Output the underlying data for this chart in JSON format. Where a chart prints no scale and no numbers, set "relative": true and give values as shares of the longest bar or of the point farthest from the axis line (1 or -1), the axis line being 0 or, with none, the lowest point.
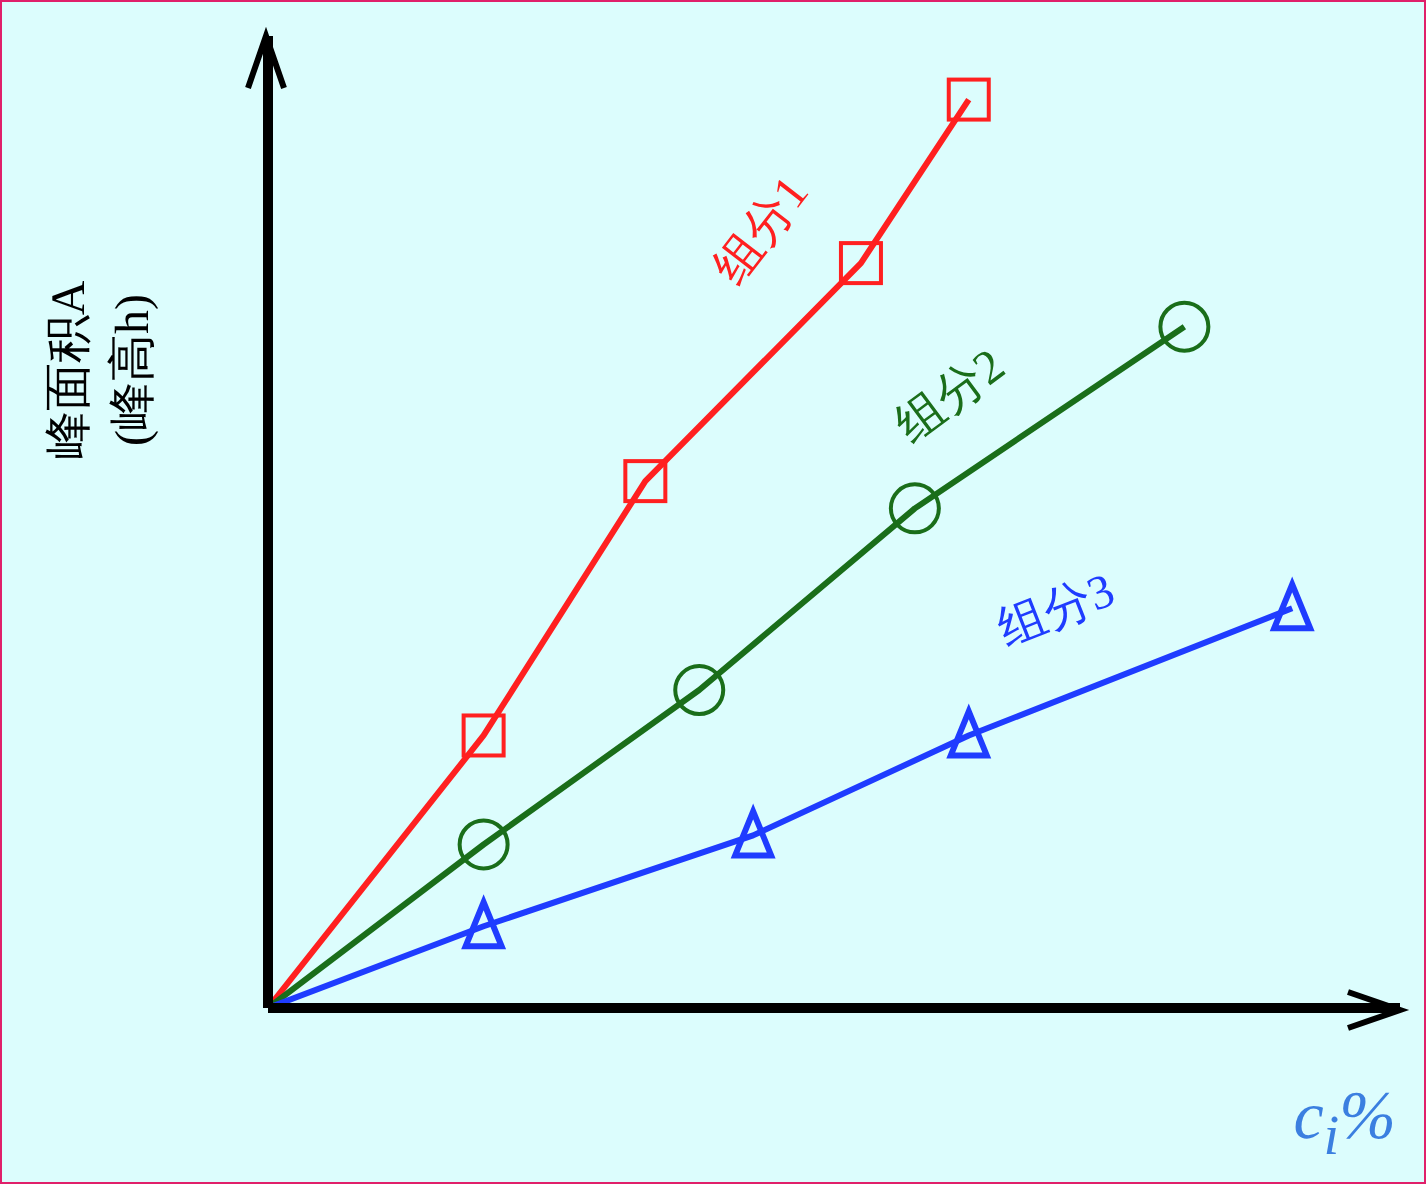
{
  "chart_data": {
    "type": "line",
    "relative": true,
    "ylabel": "峰面积A\n(峰高h)",
    "xlabel": "c$_{i}$%",
    "categories": [
      null,
      null,
      null,
      null,
      null,
      null,
      null,
      null,
      null,
      null,
      null,
      null,
      null,
      null,
      null,
      null,
      null,
      null,
      null,
      null,
      null
    ],
    "series": [
      {
        "name": "组分1",
        "color": "#ff2020",
        "marker": "square",
        "values": [
          0,
          null,
          null,
          null,
          0.3,
          null,
          null,
          0.58,
          null,
          null,
          null,
          0.82,
          null,
          1,
          null,
          null,
          null,
          null,
          null,
          null,
          null
        ]
      },
      {
        "name": "组分2",
        "color": "#1a6e1a",
        "marker": "circle",
        "values": [
          0,
          null,
          null,
          null,
          0.18,
          null,
          null,
          null,
          0.35,
          null,
          null,
          null,
          0.55,
          null,
          null,
          null,
          null,
          0.75,
          null,
          null,
          null
        ]
      },
      {
        "name": "组分3",
        "color": "#1f3cff",
        "marker": "triangle",
        "values": [
          0,
          null,
          null,
          null,
          0.09,
          null,
          null,
          null,
          null,
          0.19,
          null,
          null,
          null,
          0.3,
          null,
          null,
          null,
          null,
          null,
          0.44,
          null
        ]
      }
    ]
  }
}
